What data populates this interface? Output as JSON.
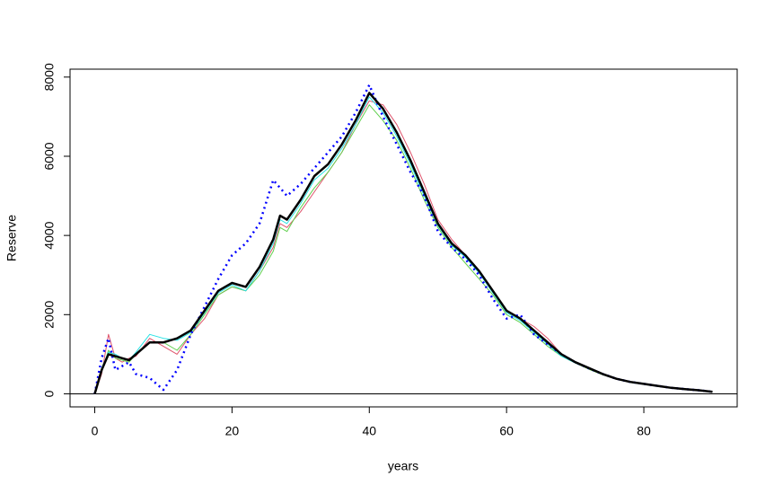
{
  "chart_data": {
    "type": "line",
    "xlabel": "years",
    "ylabel": "Reserve",
    "x": [
      0,
      1,
      2,
      3,
      4,
      5,
      6,
      8,
      10,
      12,
      14,
      16,
      18,
      20,
      22,
      24,
      26,
      27,
      28,
      30,
      32,
      34,
      36,
      38,
      40,
      42,
      44,
      46,
      48,
      50,
      52,
      54,
      56,
      58,
      60,
      62,
      64,
      66,
      68,
      70,
      72,
      74,
      76,
      78,
      80,
      82,
      84,
      86,
      88,
      90
    ],
    "series": [
      {
        "color": "#DF536B",
        "width": 1,
        "dash": false,
        "values": [
          0,
          500,
          1500,
          900,
          800,
          900,
          950,
          1400,
          1200,
          1000,
          1500,
          1900,
          2500,
          2700,
          2600,
          3100,
          3700,
          4300,
          4200,
          4600,
          5100,
          5600,
          6100,
          6800,
          7400,
          7300,
          6800,
          6100,
          5300,
          4400,
          3900,
          3500,
          3100,
          2600,
          2100,
          1900,
          1700,
          1400,
          1000,
          800,
          660,
          500,
          380,
          300,
          250,
          200,
          150,
          120,
          90,
          50
        ]
      },
      {
        "color": "#61D04F",
        "width": 1,
        "dash": false,
        "values": [
          0,
          550,
          1100,
          900,
          850,
          800,
          1000,
          1300,
          1300,
          1100,
          1500,
          2000,
          2500,
          2700,
          2600,
          3000,
          3600,
          4200,
          4100,
          4700,
          5200,
          5600,
          6100,
          6700,
          7300,
          6900,
          6400,
          5700,
          4900,
          4200,
          3700,
          3300,
          2900,
          2500,
          2000,
          1800,
          1500,
          1200,
          950,
          780,
          620,
          480,
          370,
          290,
          240,
          190,
          150,
          110,
          80,
          50
        ]
      },
      {
        "color": "#28E2E5",
        "width": 1,
        "dash": false,
        "values": [
          0,
          650,
          1050,
          1000,
          900,
          850,
          1050,
          1500,
          1400,
          1350,
          1550,
          2050,
          2550,
          2750,
          2600,
          3100,
          3800,
          4400,
          4300,
          4800,
          5400,
          5700,
          6200,
          6800,
          7500,
          7100,
          6500,
          5800,
          5000,
          4250,
          3750,
          3450,
          3050,
          2550,
          2050,
          1850,
          1550,
          1250,
          950,
          780,
          640,
          490,
          370,
          290,
          240,
          190,
          150,
          110,
          80,
          50
        ]
      },
      {
        "color": "#0000FF",
        "width": 2.5,
        "dash": true,
        "values": [
          0,
          900,
          1400,
          600,
          700,
          800,
          500,
          400,
          100,
          600,
          1500,
          2200,
          2900,
          3500,
          3800,
          4300,
          5400,
          5200,
          5000,
          5300,
          5700,
          6100,
          6500,
          7100,
          7800,
          7000,
          6300,
          5600,
          5000,
          4100,
          3700,
          3400,
          3000,
          2400,
          1900,
          2000,
          1500,
          1250,
          1000,
          800,
          640,
          500,
          380,
          300,
          250,
          200,
          150,
          120,
          90,
          50
        ]
      },
      {
        "color": "#000000",
        "width": 2.5,
        "dash": false,
        "values": [
          0,
          600,
          1000,
          950,
          900,
          850,
          1000,
          1300,
          1300,
          1400,
          1600,
          2100,
          2600,
          2800,
          2700,
          3200,
          3900,
          4500,
          4400,
          4900,
          5500,
          5800,
          6300,
          6900,
          7600,
          7200,
          6600,
          5900,
          5100,
          4300,
          3800,
          3500,
          3100,
          2600,
          2100,
          1900,
          1600,
          1300,
          1000,
          800,
          650,
          500,
          380,
          300,
          250,
          200,
          150,
          120,
          90,
          50
        ]
      }
    ],
    "hline": 0,
    "xlim": [
      -3.6,
      93.6
    ],
    "ylim": [
      -330,
      8200
    ],
    "xticks": [
      0,
      20,
      40,
      60,
      80
    ],
    "yticks": [
      0,
      2000,
      4000,
      6000,
      8000
    ]
  }
}
